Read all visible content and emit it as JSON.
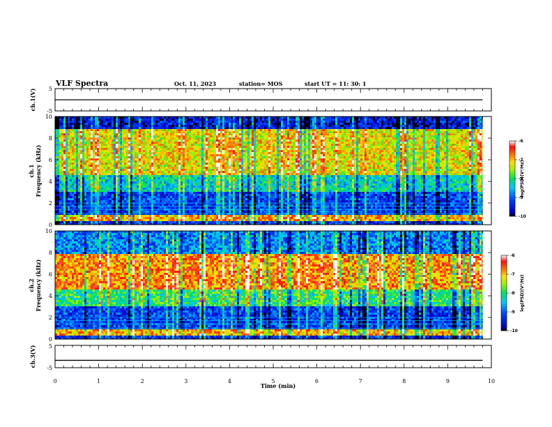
{
  "header": {
    "title": "VLF Spectra",
    "date": "Oct. 11, 2023",
    "station": "station= MOS",
    "start": "start  UT =   11: 30: 1"
  },
  "colors": {
    "background": "#ffffff",
    "axes": "#000000",
    "trace": "#000000"
  },
  "chart_data": [
    {
      "type": "line",
      "id": "ch1-waveform",
      "ylabel": "ch.1(V)",
      "ylim": [
        -5,
        5
      ],
      "yticks": [
        "5",
        "-5"
      ],
      "xlim": [
        0,
        10
      ],
      "series": [
        {
          "x": [
            0,
            9.8
          ],
          "y": [
            0,
            0
          ]
        }
      ]
    },
    {
      "type": "heatmap",
      "id": "ch1-spectrogram",
      "ylabel": "ch.1\nFrequency (kHz)",
      "xlim": [
        0,
        9.8
      ],
      "ylim": [
        0,
        10
      ],
      "yticks": [
        "0",
        "2",
        "4",
        "6",
        "8",
        "10"
      ],
      "colorbar": {
        "label": "log(PSD)(V²/Hz)",
        "range": [
          -10,
          -6
        ],
        "ticks": [
          "-6",
          "-7",
          "-8",
          "-9",
          "-10"
        ]
      },
      "bands": [
        {
          "freq_khz": [
            0,
            0.3
          ],
          "log_psd": -9.3
        },
        {
          "freq_khz": [
            0.3,
            1.0
          ],
          "log_psd": -7.0
        },
        {
          "freq_khz": [
            1.0,
            3.0
          ],
          "log_psd": -9.2
        },
        {
          "freq_khz": [
            3.0,
            4.5
          ],
          "log_psd": -8.3
        },
        {
          "freq_khz": [
            4.5,
            8.8
          ],
          "log_psd": -7.2
        },
        {
          "freq_khz": [
            8.8,
            10
          ],
          "log_psd": -9.5
        }
      ]
    },
    {
      "type": "heatmap",
      "id": "ch2-spectrogram",
      "ylabel": "ch.2\nFrequency (kHz)",
      "xlim": [
        0,
        9.8
      ],
      "ylim": [
        0,
        10
      ],
      "yticks": [
        "0",
        "2",
        "4",
        "6",
        "8",
        "10"
      ],
      "colorbar": {
        "label": "log(PSD)(V²/Hz)",
        "range": [
          -10,
          -6
        ],
        "ticks": [
          "-6",
          "-7",
          "-8",
          "-9",
          "-10"
        ]
      },
      "bands": [
        {
          "freq_khz": [
            0,
            0.3
          ],
          "log_psd": -9.3
        },
        {
          "freq_khz": [
            0.3,
            1.0
          ],
          "log_psd": -7.0
        },
        {
          "freq_khz": [
            1.0,
            3.0
          ],
          "log_psd": -9.2
        },
        {
          "freq_khz": [
            3.0,
            4.5
          ],
          "log_psd": -8.0
        },
        {
          "freq_khz": [
            4.5,
            7.8
          ],
          "log_psd": -6.8
        },
        {
          "freq_khz": [
            7.8,
            10
          ],
          "log_psd": -8.8
        }
      ]
    },
    {
      "type": "line",
      "id": "ch3-waveform",
      "ylabel": "ch.3(V)",
      "ylim": [
        -5,
        5
      ],
      "yticks": [
        "5",
        "-5"
      ],
      "xlim": [
        0,
        10
      ],
      "series": [
        {
          "x": [
            0,
            9.8
          ],
          "y": [
            -1.7,
            -1.7
          ]
        }
      ]
    }
  ],
  "xaxis": {
    "label": "Time (min)",
    "range": [
      0,
      10
    ],
    "ticks": [
      "0",
      "1",
      "2",
      "3",
      "4",
      "5",
      "6",
      "7",
      "8",
      "9",
      "10"
    ]
  },
  "colorbar_ticks": [
    "-6",
    "-7",
    "-8",
    "-9",
    "-10"
  ],
  "colorbar_label": "log(PSD)(V²/Hz)"
}
